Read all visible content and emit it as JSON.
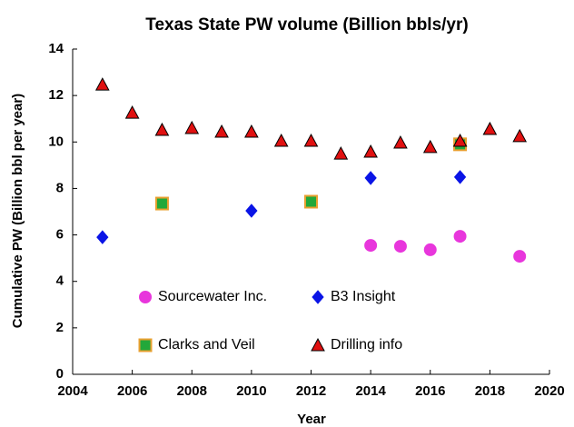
{
  "chart_data": {
    "type": "scatter",
    "title": "Texas State PW volume (Billion bbls/yr)",
    "x_label": "Year",
    "y_label": "Cumulative PW  (Billion bbl per year)",
    "xlim": [
      2004,
      2020
    ],
    "xticks": [
      2004,
      2006,
      2008,
      2010,
      2012,
      2014,
      2016,
      2018,
      2020
    ],
    "ylim": [
      0,
      14
    ],
    "yticks": [
      0,
      2,
      4,
      6,
      8,
      10,
      12,
      14
    ],
    "grid": false,
    "series": [
      {
        "name": "Sourcewater Inc.",
        "color": "#e836dc",
        "edgecolor": "#e836dc",
        "marker": "circle",
        "x": [
          2014,
          2015,
          2016,
          2017,
          2019
        ],
        "values": [
          5.55,
          5.51,
          5.36,
          5.94,
          5.08
        ]
      },
      {
        "name": "B3 Insight",
        "color": "#0a14e6",
        "edgecolor": "#0a14e6",
        "marker": "diamond",
        "x": [
          2005,
          2010,
          2014,
          2017
        ],
        "values": [
          5.9,
          7.04,
          8.45,
          8.49
        ]
      },
      {
        "name": "Clarks and Veil",
        "color": "#22a83a",
        "edgecolor": "#e8a030",
        "marker": "square",
        "x": [
          2007,
          2012,
          2017
        ],
        "values": [
          7.35,
          7.43,
          9.9
        ]
      },
      {
        "name": "Drilling info",
        "color": "#e01010",
        "edgecolor": "#000000",
        "marker": "triangle",
        "x": [
          2005,
          2006,
          2007,
          2008,
          2009,
          2010,
          2011,
          2012,
          2013,
          2014,
          2015,
          2016,
          2017,
          2018,
          2019
        ],
        "values": [
          12.47,
          11.26,
          10.52,
          10.6,
          10.44,
          10.44,
          10.05,
          10.05,
          9.5,
          9.58,
          9.97,
          9.78,
          10.05,
          10.56,
          10.25
        ]
      }
    ]
  }
}
